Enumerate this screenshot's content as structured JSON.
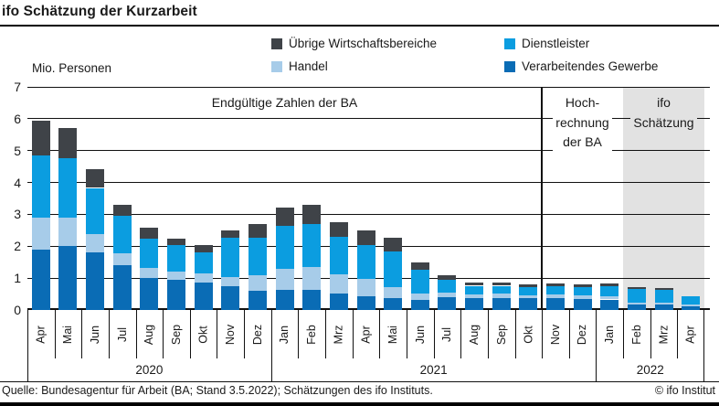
{
  "header": {
    "title": "ifo Schätzung der Kurzarbeit"
  },
  "axis": {
    "unit_label": "Mio. Personen",
    "y_ticks": [
      "7",
      "6",
      "5",
      "4",
      "3",
      "2",
      "1",
      "0"
    ]
  },
  "legend": [
    {
      "label": "Übrige Wirtschaftsbereiche",
      "color": "#3f4348"
    },
    {
      "label": "Dienstleister",
      "color": "#0b9de0"
    },
    {
      "label": "Handel",
      "color": "#a7cce9"
    },
    {
      "label": "Verarbeitendes Gewerbe",
      "color": "#0a6cb5"
    }
  ],
  "chart_data": {
    "type": "bar",
    "stacked": true,
    "title": "ifo Schätzung der Kurzarbeit",
    "ylabel": "Mio. Personen",
    "ylim": [
      0,
      7
    ],
    "grid": true,
    "legend_position": "top",
    "categories": [
      "Apr",
      "Mai",
      "Jun",
      "Jul",
      "Aug",
      "Sep",
      "Okt",
      "Nov",
      "Dez",
      "Jan",
      "Feb",
      "Mrz",
      "Apr",
      "Mai",
      "Jun",
      "Jul",
      "Aug",
      "Sep",
      "Okt",
      "Nov",
      "Dez",
      "Jan",
      "Feb",
      "Mrz",
      "Apr"
    ],
    "year_groups": [
      {
        "label": "2020",
        "months": 9
      },
      {
        "label": "2021",
        "months": 12
      },
      {
        "label": "2022",
        "months": 4
      }
    ],
    "series": [
      {
        "name": "Verarbeitendes Gewerbe",
        "color": "#0a6cb5",
        "values": [
          1.9,
          2.0,
          1.8,
          1.41,
          1.0,
          0.95,
          0.85,
          0.74,
          0.6,
          0.64,
          0.64,
          0.52,
          0.43,
          0.38,
          0.31,
          0.4,
          0.36,
          0.38,
          0.36,
          0.38,
          0.35,
          0.33,
          0.16,
          0.16,
          0.12
        ]
      },
      {
        "name": "Handel",
        "color": "#a7cce9",
        "values": [
          1.0,
          0.9,
          0.58,
          0.36,
          0.33,
          0.26,
          0.31,
          0.28,
          0.5,
          0.66,
          0.72,
          0.59,
          0.55,
          0.33,
          0.21,
          0.14,
          0.13,
          0.13,
          0.11,
          0.12,
          0.12,
          0.1,
          0.08,
          0.08,
          0.06
        ]
      },
      {
        "name": "Dienstleister",
        "color": "#0b9de0",
        "values": [
          1.95,
          1.85,
          1.45,
          1.18,
          0.92,
          0.82,
          0.65,
          1.26,
          1.18,
          1.34,
          1.34,
          1.18,
          1.07,
          1.12,
          0.75,
          0.4,
          0.27,
          0.25,
          0.25,
          0.24,
          0.25,
          0.32,
          0.42,
          0.4,
          0.25
        ]
      },
      {
        "name": "Übrige Wirtschaftsbereiche",
        "color": "#3f4348",
        "values": [
          1.1,
          0.95,
          0.6,
          0.35,
          0.32,
          0.22,
          0.22,
          0.22,
          0.42,
          0.57,
          0.6,
          0.47,
          0.45,
          0.43,
          0.21,
          0.16,
          0.09,
          0.09,
          0.07,
          0.08,
          0.07,
          0.08,
          0.07,
          0.06,
          0.0
        ]
      }
    ],
    "zones": {
      "final": {
        "label": "Endgültige Zahlen der BA",
        "months": 19
      },
      "extrapolation": {
        "lines": [
          "Hoch-",
          "rechnung",
          "der BA"
        ],
        "start_month": 19,
        "end_month": 22
      },
      "estimate": {
        "lines": [
          "ifo",
          "Schätzung"
        ],
        "start_month": 22,
        "background": "#e2e2e2"
      }
    }
  },
  "footer": {
    "source": "Quelle: Bundesagentur für Arbeit (BA; Stand 3.5.2022); Schätzungen des ifo Instituts.",
    "credit": "© ifo Institut"
  }
}
